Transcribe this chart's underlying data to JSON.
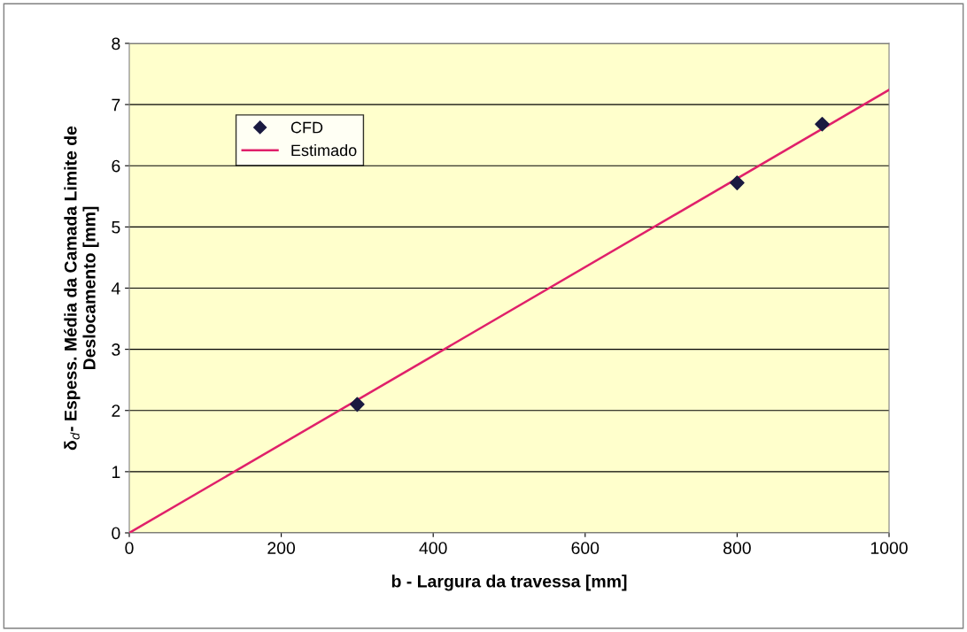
{
  "chart_data": {
    "type": "scatter",
    "xlabel": "b - Largura da travessa [mm]",
    "ylabel": "δ$_{d}$- Espess. Média da Camada Limite de\nDeslocamento [mm]",
    "xlim": [
      0,
      1000
    ],
    "xticks": [
      0,
      200,
      400,
      600,
      800,
      1000
    ],
    "ylim": [
      0,
      8
    ],
    "yticks": [
      0,
      1,
      2,
      3,
      4,
      5,
      6,
      7,
      8
    ],
    "grid": "y",
    "legend": "top left",
    "series": [
      {
        "name": "CFD",
        "color": "#1a1a40",
        "marker": "diamond",
        "x": [
          300,
          800,
          912
        ],
        "values": [
          2.1,
          5.72,
          6.68
        ]
      },
      {
        "name": "Estimado",
        "type": "line",
        "color": "#e0206a",
        "marker": "none",
        "line_style": "solid",
        "x": [
          0,
          1000
        ],
        "values": [
          0,
          7.24
        ]
      }
    ]
  }
}
